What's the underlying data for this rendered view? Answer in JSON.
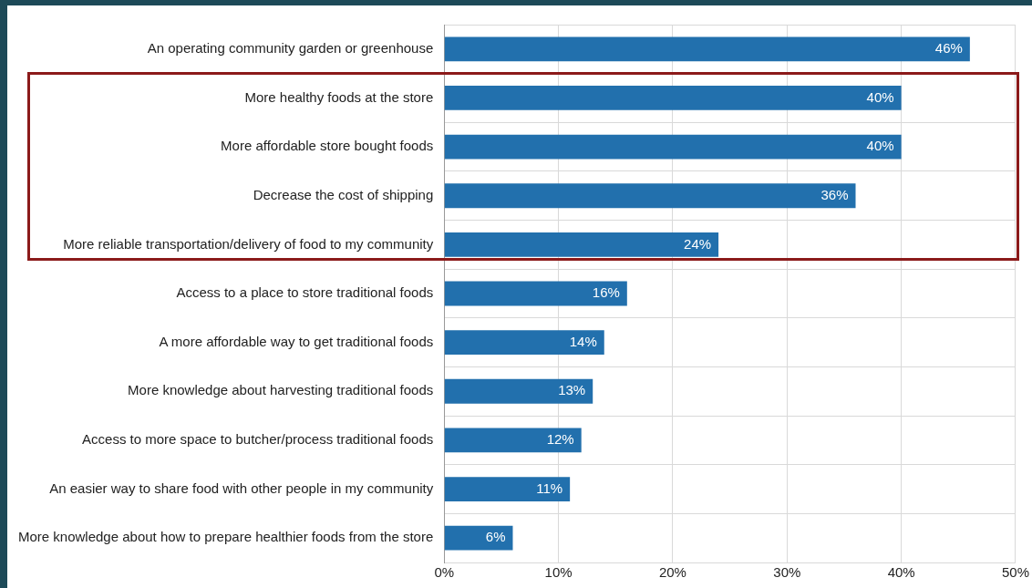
{
  "chart_data": {
    "type": "bar",
    "orientation": "horizontal",
    "categories": [
      "An operating community garden or greenhouse",
      "More healthy foods at the store",
      "More affordable store bought foods",
      "Decrease the cost of shipping",
      "More reliable transportation/delivery of food to my community",
      "Access to a place to store traditional foods",
      "A more affordable way to get traditional foods",
      "More knowledge about harvesting traditional foods",
      "Access to more space to butcher/process traditional foods",
      "An easier way to share food with other people in my community",
      "More knowledge about how to prepare healthier foods from the store"
    ],
    "values": [
      46,
      40,
      40,
      36,
      24,
      16,
      14,
      13,
      12,
      11,
      6
    ],
    "value_labels": [
      "46%",
      "40%",
      "40%",
      "36%",
      "24%",
      "16%",
      "14%",
      "13%",
      "12%",
      "11%",
      "6%"
    ],
    "color": "#2270ad",
    "xlim": [
      0,
      50
    ],
    "xticks": [
      {
        "value": 0,
        "label": "0%"
      },
      {
        "value": 10,
        "label": "10%"
      },
      {
        "value": 20,
        "label": "20%"
      },
      {
        "value": 30,
        "label": "30%"
      },
      {
        "value": 40,
        "label": "40%"
      },
      {
        "value": 50,
        "label": "50%"
      }
    ],
    "grid": true,
    "legend": false
  }
}
